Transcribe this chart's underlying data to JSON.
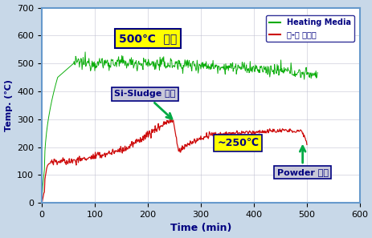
{
  "xlabel": "Time (min)",
  "ylabel": "Temp. (℃)",
  "xlim": [
    0,
    600
  ],
  "ylim": [
    0,
    700
  ],
  "xticks": [
    0,
    100,
    200,
    300,
    400,
    500,
    600
  ],
  "yticks": [
    0,
    100,
    200,
    300,
    400,
    500,
    600,
    700
  ],
  "bg_color": "#c8d8e8",
  "plot_bg_color": "#ffffff",
  "border_color": "#6699cc",
  "green_line_color": "#00aa00",
  "red_line_color": "#cc0000",
  "annotation_500_text": "500℃  내외",
  "annotation_500_bg": "#ffff00",
  "annotation_sludge_text": "Si-Sludge 투입",
  "annotation_sludge_bg": "#c8c8d8",
  "annotation_250_text": "~250℃",
  "annotation_250_bg": "#ffff00",
  "annotation_powder_text": "Powder 회수",
  "annotation_powder_bg": "#c8c8d8",
  "legend_heating": "Heating Media",
  "legend_solid": "고-유 분리부",
  "arrow_color": "#00aa44",
  "text_color": "#000080"
}
